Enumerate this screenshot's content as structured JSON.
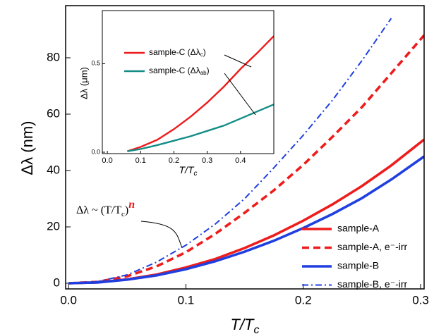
{
  "chart_data": [
    {
      "type": "line",
      "x_label": "T/T",
      "x_label_sub": "c",
      "y_label": "Δλ (nm)",
      "annotation": {
        "text": "Δλ ~ (T/T",
        "sub": "c",
        "close": ")",
        "sup": "n"
      },
      "x": [
        0,
        0.025,
        0.05,
        0.075,
        0.1,
        0.125,
        0.15,
        0.175,
        0.2,
        0.225,
        0.25,
        0.275,
        0.303
      ],
      "series": [
        {
          "name": "sample-A",
          "color": "#ee1c1c",
          "style": "solid",
          "values": [
            0,
            0.3,
            1.4,
            3.1,
            5.6,
            8.6,
            12.5,
            17,
            22.2,
            28,
            34.5,
            41.8,
            51
          ]
        },
        {
          "name": "sample-A, e⁻-irr",
          "color": "#ee1c1c",
          "style": "dashed",
          "values": [
            0,
            0.5,
            2.5,
            6,
            11,
            17.5,
            25,
            33,
            42,
            52,
            62.5,
            74.5,
            88
          ]
        },
        {
          "name": "sample-B",
          "color": "#1f3fe0",
          "style": "solid",
          "values": [
            0,
            0.3,
            1.3,
            2.8,
            5,
            7.8,
            11.2,
            15.1,
            19.6,
            24.6,
            30.2,
            36.8,
            45
          ]
        },
        {
          "name": "sample-B, e⁻-irr",
          "color": "#1f3fe0",
          "style": "dashdot",
          "values": [
            0,
            0.6,
            3,
            7.5,
            13.5,
            21,
            30,
            41,
            52.5,
            65,
            79,
            94,
            null
          ]
        }
      ],
      "xlim": [
        -0.0025,
        0.303
      ],
      "ylim": [
        -2,
        98.5
      ],
      "xticks": [
        {
          "value": 0,
          "label": "0.0"
        },
        0.1,
        0.2,
        0.3
      ],
      "yticks": [
        0,
        20,
        40,
        60,
        80
      ],
      "legend": "lower right"
    },
    {
      "type": "line",
      "x_label": "T/T",
      "x_label_sub": "c",
      "y_label": "Δλ (μm)",
      "x": [
        0.06,
        0.1,
        0.15,
        0.2,
        0.25,
        0.3,
        0.35,
        0.4,
        0.45,
        0.5
      ],
      "series": [
        {
          "name": "sample-C (Δλ",
          "name_sub": "c",
          "name_after": ")",
          "color": "#ee1c1c",
          "style": "solid",
          "values": [
            0.005,
            0.03,
            0.07,
            0.13,
            0.2,
            0.28,
            0.37,
            0.47,
            0.56,
            0.656
          ]
        },
        {
          "name": "sample-C (Δλ",
          "name_sub": "ab",
          "name_after": ")",
          "color": "#138c86",
          "style": "solid",
          "values": [
            0.005,
            0.018,
            0.04,
            0.065,
            0.09,
            0.12,
            0.15,
            0.19,
            0.23,
            0.27
          ]
        }
      ],
      "xlim": [
        -0.015,
        0.5
      ],
      "ylim": [
        -0.008,
        0.8
      ],
      "xticks": [
        {
          "value": 0,
          "label": "0.0"
        },
        0.1,
        0.2,
        0.3,
        0.4
      ],
      "yticks": [
        {
          "value": 0,
          "label": "0.0"
        },
        0.5
      ],
      "legend": "upper left"
    }
  ]
}
